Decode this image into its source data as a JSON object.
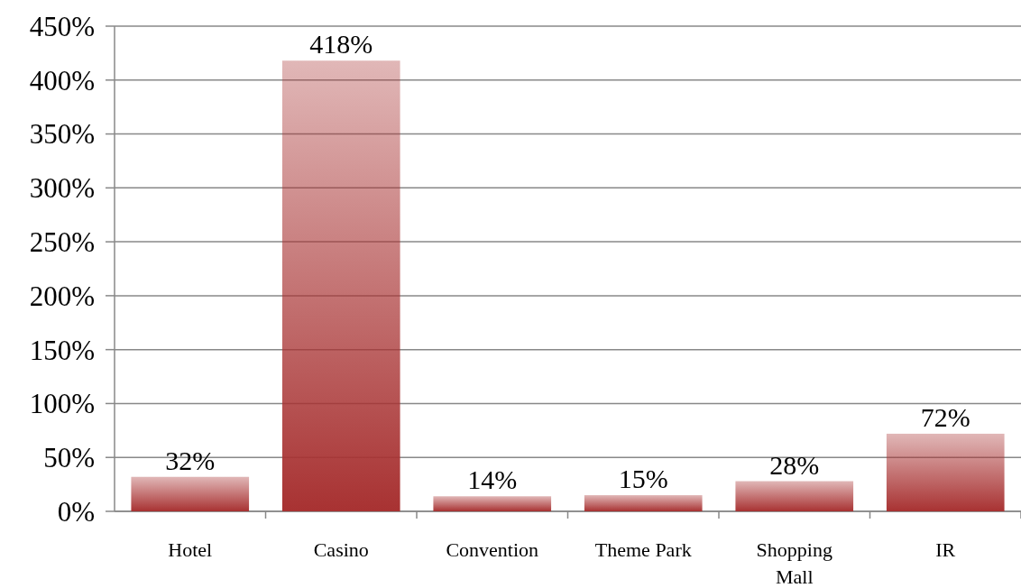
{
  "chart_data": {
    "type": "bar",
    "categories": [
      "Hotel",
      "Casino",
      "Convention",
      "Theme Park",
      "Shopping Mall",
      "IR"
    ],
    "values": [
      32,
      418,
      14,
      15,
      28,
      72
    ],
    "value_labels": [
      "32%",
      "418%",
      "14%",
      "15%",
      "28%",
      "72%"
    ],
    "color": "#a83232",
    "ylim": [
      0,
      450
    ],
    "yticks": [
      {
        "value": 0,
        "label": "0%"
      },
      {
        "value": 50,
        "label": "50%"
      },
      {
        "value": 100,
        "label": "100%"
      },
      {
        "value": 150,
        "label": "150%"
      },
      {
        "value": 200,
        "label": "200%"
      },
      {
        "value": 250,
        "label": "250%"
      },
      {
        "value": 300,
        "label": "300%"
      },
      {
        "value": 350,
        "label": "350%"
      },
      {
        "value": 400,
        "label": "400%"
      },
      {
        "value": 450,
        "label": "450%"
      }
    ],
    "grid": "y"
  }
}
